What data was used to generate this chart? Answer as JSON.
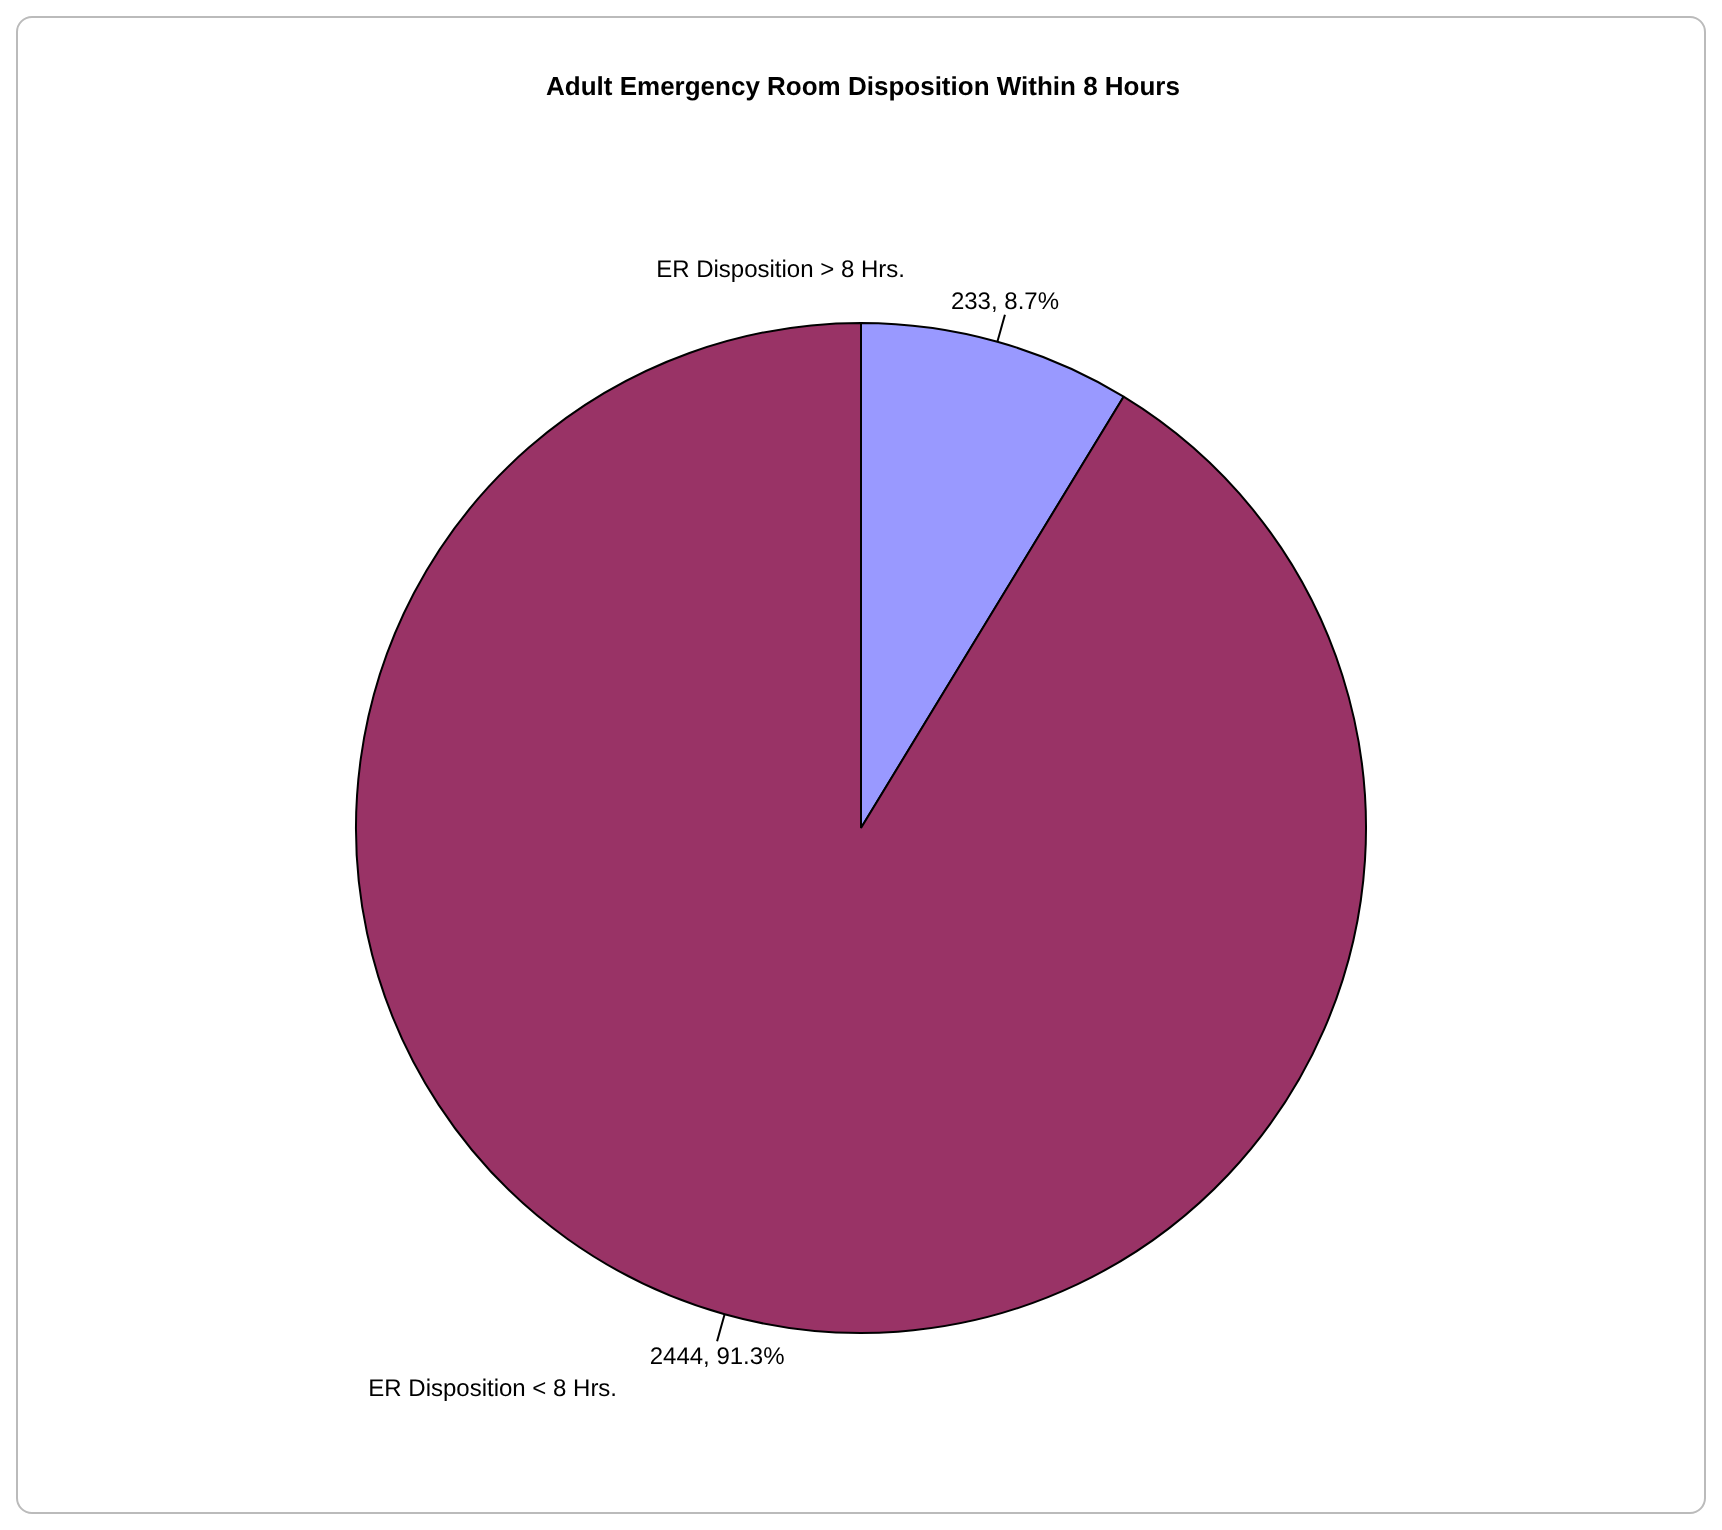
{
  "chart_data": {
    "type": "pie",
    "title": "Adult Emergency Room Disposition Within 8 Hours",
    "categories": [
      "ER Disposition > 8 Hrs.",
      "ER Disposition < 8 Hrs."
    ],
    "values": [
      233,
      2444
    ],
    "colors": [
      "#9999ff",
      "#993366"
    ],
    "value_labels": [
      "233, 8.7%",
      "2444, 91.3%"
    ],
    "legend": false
  }
}
